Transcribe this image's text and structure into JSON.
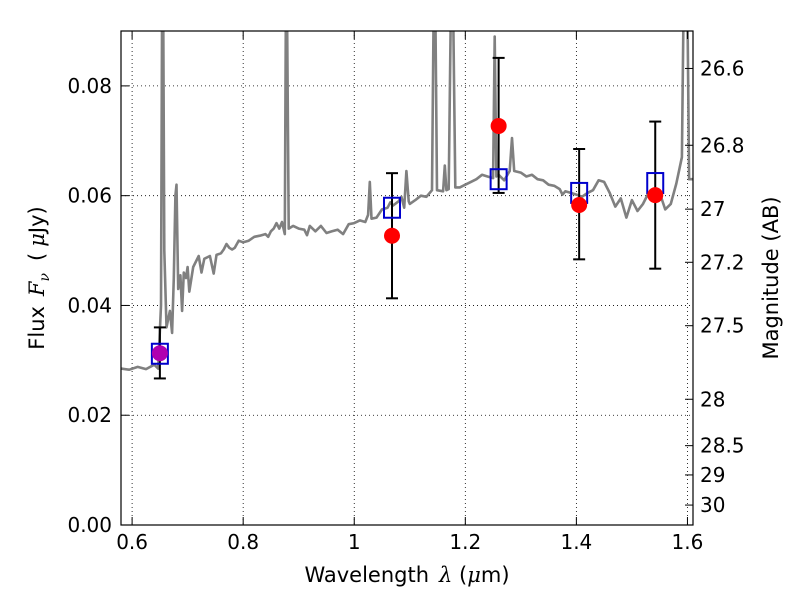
{
  "chart_data": {
    "type": "scatter",
    "title": "",
    "xlabel": "Wavelength",
    "xlabel_symbol": "λ",
    "xlabel_unit_open": " (",
    "xlabel_unit_mu": "μ",
    "xlabel_unit_close": "m)",
    "ylabel": "Flux",
    "ylabel_symbol": "F",
    "ylabel_subscript": "ν",
    "ylabel_unit_open": "(",
    "ylabel_unit_mu": "μ",
    "ylabel_unit_close": "Jy)",
    "ylabel_right": "Magnitude (AB)",
    "xlim": [
      0.58,
      1.61
    ],
    "ylim": [
      0.0,
      0.09
    ],
    "grid": true,
    "x_ticks": [
      {
        "value": 0.6,
        "label": "0.6"
      },
      {
        "value": 0.8,
        "label": "0.8"
      },
      {
        "value": 1.0,
        "label": "1"
      },
      {
        "value": 1.2,
        "label": "1.2"
      },
      {
        "value": 1.4,
        "label": "1.4"
      },
      {
        "value": 1.6,
        "label": "1.6"
      }
    ],
    "y_ticks": [
      {
        "value": 0.0,
        "label": "0.00"
      },
      {
        "value": 0.02,
        "label": "0.02"
      },
      {
        "value": 0.04,
        "label": "0.04"
      },
      {
        "value": 0.06,
        "label": "0.06"
      },
      {
        "value": 0.08,
        "label": "0.08"
      }
    ],
    "mag_ticks": [
      {
        "value": 26.6,
        "label": "26.6"
      },
      {
        "value": 26.8,
        "label": "26.8"
      },
      {
        "value": 27.0,
        "label": "27"
      },
      {
        "value": 27.2,
        "label": "27.2"
      },
      {
        "value": 27.5,
        "label": "27.5"
      },
      {
        "value": 28.0,
        "label": "28"
      },
      {
        "value": 28.5,
        "label": "28.5"
      },
      {
        "value": 29.0,
        "label": "29"
      },
      {
        "value": 30.0,
        "label": "30"
      }
    ],
    "series": [
      {
        "kind": "spectrum",
        "color": "#808080",
        "points": [
          [
            0.58,
            0.0285
          ],
          [
            0.595,
            0.0283
          ],
          [
            0.61,
            0.0288
          ],
          [
            0.625,
            0.0284
          ],
          [
            0.64,
            0.0292
          ],
          [
            0.647,
            0.0285
          ],
          [
            0.652,
            0.04
          ],
          [
            0.654,
            0.095
          ],
          [
            0.656,
            0.095
          ],
          [
            0.658,
            0.05
          ],
          [
            0.662,
            0.036
          ],
          [
            0.668,
            0.039
          ],
          [
            0.672,
            0.035
          ],
          [
            0.675,
            0.045
          ],
          [
            0.678,
            0.06
          ],
          [
            0.68,
            0.062
          ],
          [
            0.683,
            0.043
          ],
          [
            0.687,
            0.0455
          ],
          [
            0.69,
            0.039
          ],
          [
            0.693,
            0.046
          ],
          [
            0.697,
            0.045
          ],
          [
            0.7,
            0.047
          ],
          [
            0.703,
            0.0425
          ],
          [
            0.71,
            0.047
          ],
          [
            0.72,
            0.049
          ],
          [
            0.725,
            0.046
          ],
          [
            0.73,
            0.0485
          ],
          [
            0.74,
            0.049
          ],
          [
            0.747,
            0.0458
          ],
          [
            0.752,
            0.0492
          ],
          [
            0.76,
            0.0495
          ],
          [
            0.765,
            0.0502
          ],
          [
            0.77,
            0.0512
          ],
          [
            0.775,
            0.0505
          ],
          [
            0.78,
            0.0502
          ],
          [
            0.785,
            0.0505
          ],
          [
            0.792,
            0.0518
          ],
          [
            0.8,
            0.0515
          ],
          [
            0.81,
            0.0518
          ],
          [
            0.82,
            0.0525
          ],
          [
            0.83,
            0.0527
          ],
          [
            0.84,
            0.053
          ],
          [
            0.845,
            0.0525
          ],
          [
            0.85,
            0.0535
          ],
          [
            0.855,
            0.054
          ],
          [
            0.86,
            0.055
          ],
          [
            0.865,
            0.054
          ],
          [
            0.87,
            0.0552
          ],
          [
            0.875,
            0.053
          ],
          [
            0.877,
            0.095
          ],
          [
            0.879,
            0.095
          ],
          [
            0.882,
            0.054
          ],
          [
            0.89,
            0.0545
          ],
          [
            0.9,
            0.054
          ],
          [
            0.91,
            0.0538
          ],
          [
            0.915,
            0.0528
          ],
          [
            0.92,
            0.0545
          ],
          [
            0.93,
            0.0535
          ],
          [
            0.94,
            0.0545
          ],
          [
            0.95,
            0.0532
          ],
          [
            0.96,
            0.0535
          ],
          [
            0.97,
            0.0538
          ],
          [
            0.98,
            0.053
          ],
          [
            0.99,
            0.0548
          ],
          [
            1.0,
            0.055
          ],
          [
            1.01,
            0.0555
          ],
          [
            1.02,
            0.0552
          ],
          [
            1.025,
            0.0565
          ],
          [
            1.028,
            0.0625
          ],
          [
            1.031,
            0.0558
          ],
          [
            1.04,
            0.056
          ],
          [
            1.05,
            0.0575
          ],
          [
            1.06,
            0.0578
          ],
          [
            1.065,
            0.0588
          ],
          [
            1.07,
            0.0582
          ],
          [
            1.08,
            0.059
          ],
          [
            1.085,
            0.0598
          ],
          [
            1.09,
            0.0578
          ],
          [
            1.094,
            0.0645
          ],
          [
            1.098,
            0.059
          ],
          [
            1.1,
            0.0585
          ],
          [
            1.11,
            0.0592
          ],
          [
            1.12,
            0.06
          ],
          [
            1.13,
            0.0598
          ],
          [
            1.14,
            0.061
          ],
          [
            1.143,
            0.095
          ],
          [
            1.146,
            0.095
          ],
          [
            1.149,
            0.061
          ],
          [
            1.16,
            0.0608
          ],
          [
            1.163,
            0.0655
          ],
          [
            1.166,
            0.061
          ],
          [
            1.17,
            0.0612
          ],
          [
            1.174,
            0.095
          ],
          [
            1.178,
            0.095
          ],
          [
            1.182,
            0.0615
          ],
          [
            1.19,
            0.0615
          ],
          [
            1.2,
            0.062
          ],
          [
            1.21,
            0.0625
          ],
          [
            1.22,
            0.063
          ],
          [
            1.23,
            0.0638
          ],
          [
            1.24,
            0.0635
          ],
          [
            1.25,
            0.0632
          ],
          [
            1.253,
            0.089
          ],
          [
            1.256,
            0.0635
          ],
          [
            1.26,
            0.0638
          ],
          [
            1.27,
            0.0628
          ],
          [
            1.28,
            0.0645
          ],
          [
            1.284,
            0.0705
          ],
          [
            1.288,
            0.0645
          ],
          [
            1.3,
            0.0642
          ],
          [
            1.31,
            0.0635
          ],
          [
            1.32,
            0.0638
          ],
          [
            1.33,
            0.063
          ],
          [
            1.34,
            0.0628
          ],
          [
            1.35,
            0.062
          ],
          [
            1.36,
            0.0618
          ],
          [
            1.37,
            0.0612
          ],
          [
            1.375,
            0.0602
          ],
          [
            1.38,
            0.0608
          ],
          [
            1.39,
            0.0605
          ],
          [
            1.4,
            0.0602
          ],
          [
            1.41,
            0.0598
          ],
          [
            1.42,
            0.0605
          ],
          [
            1.43,
            0.061
          ],
          [
            1.44,
            0.0628
          ],
          [
            1.45,
            0.0625
          ],
          [
            1.46,
            0.0605
          ],
          [
            1.47,
            0.058
          ],
          [
            1.48,
            0.0595
          ],
          [
            1.49,
            0.056
          ],
          [
            1.5,
            0.0592
          ],
          [
            1.51,
            0.0572
          ],
          [
            1.52,
            0.0585
          ],
          [
            1.53,
            0.0605
          ],
          [
            1.54,
            0.0595
          ],
          [
            1.55,
            0.0605
          ],
          [
            1.56,
            0.0575
          ],
          [
            1.57,
            0.0585
          ],
          [
            1.58,
            0.0622
          ],
          [
            1.59,
            0.067
          ],
          [
            1.593,
            0.095
          ],
          [
            1.6,
            0.095
          ],
          [
            1.603,
            0.063
          ],
          [
            1.61,
            0.063
          ]
        ]
      },
      {
        "kind": "model-boxes",
        "marker": "open-square",
        "color": "#0000cc",
        "points": [
          {
            "x": 0.65,
            "y": 0.0312
          },
          {
            "x": 1.068,
            "y": 0.0578
          },
          {
            "x": 1.26,
            "y": 0.063
          },
          {
            "x": 1.405,
            "y": 0.0605
          },
          {
            "x": 1.542,
            "y": 0.0623
          }
        ]
      },
      {
        "kind": "measurements",
        "marker": "filled-circle",
        "color": "#ff0000",
        "points": [
          {
            "x": 0.65,
            "y": 0.0313,
            "yerr_low": 0.0267,
            "yerr_high": 0.036,
            "fill": "#b000b0"
          },
          {
            "x": 1.068,
            "y": 0.0527,
            "yerr_low": 0.0413,
            "yerr_high": 0.0641
          },
          {
            "x": 1.26,
            "y": 0.0727,
            "yerr_low": 0.0605,
            "yerr_high": 0.0851
          },
          {
            "x": 1.405,
            "y": 0.0583,
            "yerr_low": 0.0484,
            "yerr_high": 0.0685
          },
          {
            "x": 1.542,
            "y": 0.0601,
            "yerr_low": 0.0467,
            "yerr_high": 0.0735
          }
        ]
      }
    ]
  }
}
